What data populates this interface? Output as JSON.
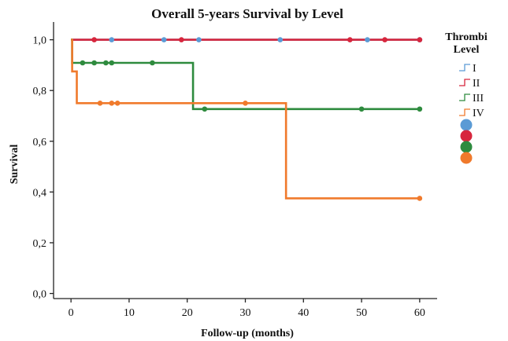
{
  "chart_data": {
    "type": "line",
    "step": true,
    "title": "Overall 5-years Survival by Level",
    "xlabel": "Follow-up (months)",
    "ylabel": "Survival",
    "xlim": [
      -3,
      63
    ],
    "ylim": [
      -0.02,
      1.07
    ],
    "xticks": [
      0,
      10,
      20,
      30,
      40,
      50,
      60
    ],
    "yticks": [
      0.0,
      0.2,
      0.4,
      0.6,
      0.8,
      1.0
    ],
    "ytick_labels": [
      "0,0",
      "0,2",
      "0,4",
      "0,6",
      "0,8",
      "1,0"
    ],
    "legend": {
      "title_line1": "Thrombi",
      "title_line2": "Level",
      "placement": "right"
    },
    "series": [
      {
        "name": "I",
        "color": "#5b9bd5",
        "steps": [
          [
            0,
            1.0
          ],
          [
            60,
            1.0
          ]
        ],
        "censored": [
          [
            7,
            1.0
          ],
          [
            16,
            1.0
          ],
          [
            22,
            1.0
          ],
          [
            36,
            1.0
          ],
          [
            51,
            1.0
          ],
          [
            60,
            1.0
          ]
        ]
      },
      {
        "name": "II",
        "color": "#d7263d",
        "steps": [
          [
            0,
            1.0
          ],
          [
            60,
            1.0
          ]
        ],
        "censored": [
          [
            4,
            1.0
          ],
          [
            19,
            1.0
          ],
          [
            48,
            1.0
          ],
          [
            54,
            1.0
          ],
          [
            60,
            1.0
          ]
        ]
      },
      {
        "name": "III",
        "color": "#2e8b3e",
        "steps": [
          [
            0,
            1.0
          ],
          [
            0.2,
            0.909
          ],
          [
            21,
            0.727
          ],
          [
            60,
            0.727
          ]
        ],
        "censored": [
          [
            2,
            0.909
          ],
          [
            4,
            0.909
          ],
          [
            6,
            0.909
          ],
          [
            7,
            0.909
          ],
          [
            14,
            0.909
          ],
          [
            23,
            0.727
          ],
          [
            50,
            0.727
          ],
          [
            60,
            0.727
          ]
        ]
      },
      {
        "name": "IV",
        "color": "#f07a2c",
        "steps": [
          [
            0,
            1.0
          ],
          [
            0.2,
            0.875
          ],
          [
            1,
            0.75
          ],
          [
            37,
            0.375
          ],
          [
            60,
            0.375
          ]
        ],
        "censored": [
          [
            5,
            0.75
          ],
          [
            7,
            0.75
          ],
          [
            8,
            0.75
          ],
          [
            30,
            0.75
          ],
          [
            60,
            0.375
          ]
        ]
      }
    ]
  }
}
